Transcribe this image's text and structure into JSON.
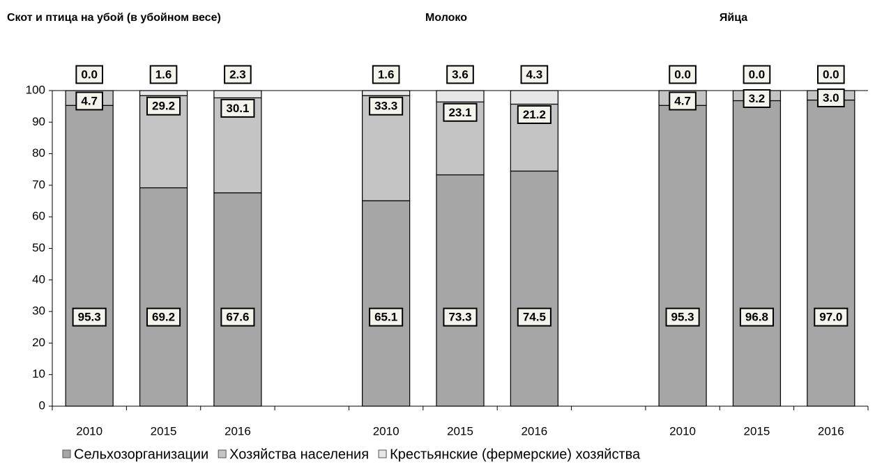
{
  "chart_data": {
    "type": "stacked_bar",
    "annotations": [
      "Скот и птица на убой (в убойном весе)",
      "Молоко",
      "Яйца"
    ],
    "categories": [
      "2010",
      "2015",
      "2016",
      null,
      "2010",
      "2015",
      "2016",
      null,
      "2010",
      "2015",
      "2016"
    ],
    "series": [
      {
        "name": "Сельхозорганизации",
        "color": "#a6a6a6",
        "values": [
          95.3,
          69.2,
          67.6,
          null,
          65.1,
          73.3,
          74.5,
          null,
          95.3,
          96.8,
          97
        ],
        "value_labels": [
          "95.3",
          "69.2",
          "67.6",
          null,
          "65.1",
          "73.3",
          "74.5",
          null,
          "95.3",
          "96.8",
          "97.0"
        ]
      },
      {
        "name": "Хозяйства населения",
        "color": "#c4c4c4",
        "values": [
          4.7,
          29.2,
          30.1,
          null,
          33.3,
          23.1,
          21.2,
          null,
          4.7,
          3.2,
          3
        ],
        "value_labels": [
          "4.7",
          "29.2",
          "30.1",
          null,
          "33.3",
          "23.1",
          "21.2",
          null,
          "4.7",
          "3.2",
          "3.0"
        ]
      },
      {
        "name": "Крестьянские (фермерские) хозяйства",
        "color": "#e6e6e6",
        "values": [
          0,
          1.6,
          2.3,
          null,
          1.6,
          3.6,
          4.3,
          null,
          0,
          0,
          0
        ],
        "value_labels": [
          "0.0",
          "1.6",
          "2.3",
          null,
          "1.6",
          "3.6",
          "4.3",
          null,
          "0.0",
          "0.0",
          "0.0"
        ]
      }
    ],
    "ylim": [
      0,
      100
    ],
    "yticks": [
      0,
      10,
      20,
      30,
      40,
      50,
      60,
      70,
      80,
      90,
      100
    ],
    "grid": false
  }
}
